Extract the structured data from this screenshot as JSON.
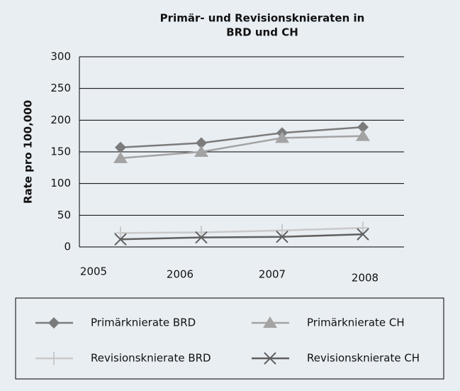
{
  "chart_data": {
    "type": "line",
    "title": [
      "Primär- und Revisionsknieraten in",
      "BRD und CH"
    ],
    "y_label": "Rate pro 100,000",
    "categories": [
      "2005",
      "2006",
      "2007",
      "2008"
    ],
    "series": [
      {
        "name": "Primärknierate BRD",
        "color": "#7b7b7b",
        "marker": "diamond",
        "values": [
          157,
          164,
          180,
          189
        ]
      },
      {
        "name": "Primärknierate CH",
        "color": "#a3a3a3",
        "marker": "triangle",
        "values": [
          140,
          150,
          172,
          175
        ]
      },
      {
        "name": "Revisionsknierate BRD",
        "color": "#c9c9c9",
        "marker": "plus",
        "values": [
          22,
          23,
          26,
          30
        ]
      },
      {
        "name": "Revisionsknierate CH",
        "color": "#5f5f5f",
        "marker": "x",
        "values": [
          12,
          15,
          16,
          20
        ]
      }
    ],
    "ylim": [
      0,
      300
    ],
    "yticks": [
      0,
      50,
      100,
      150,
      200,
      250,
      300
    ],
    "grid": true
  }
}
